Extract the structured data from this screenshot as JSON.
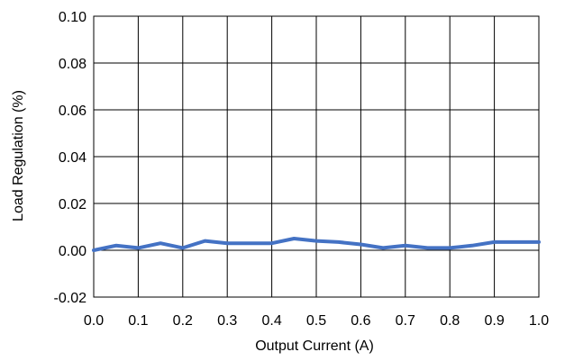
{
  "chart_data": {
    "type": "line",
    "title": "",
    "xlabel": "Output Current (A)",
    "ylabel": "Load Regulation (%)",
    "xlim": [
      0.0,
      1.0
    ],
    "ylim": [
      -0.02,
      0.1
    ],
    "x_ticks": [
      "0.0",
      "0.1",
      "0.2",
      "0.3",
      "0.4",
      "0.5",
      "0.6",
      "0.7",
      "0.8",
      "0.9",
      "1.0"
    ],
    "y_ticks": [
      "0.10",
      "0.08",
      "0.06",
      "0.04",
      "0.02",
      "0.00",
      "-0.02"
    ],
    "grid": true,
    "legend": "none",
    "series": [
      {
        "color": "#4472C4",
        "x": [
          0.0,
          0.05,
          0.1,
          0.15,
          0.2,
          0.25,
          0.3,
          0.35,
          0.4,
          0.45,
          0.5,
          0.55,
          0.6,
          0.65,
          0.7,
          0.75,
          0.8,
          0.85,
          0.9,
          0.95,
          1.0
        ],
        "y": [
          0.0,
          0.002,
          0.001,
          0.003,
          0.001,
          0.004,
          0.003,
          0.003,
          0.003,
          0.005,
          0.004,
          0.0035,
          0.0025,
          0.001,
          0.002,
          0.001,
          0.001,
          0.002,
          0.0035,
          0.0035,
          0.0035
        ]
      }
    ]
  }
}
